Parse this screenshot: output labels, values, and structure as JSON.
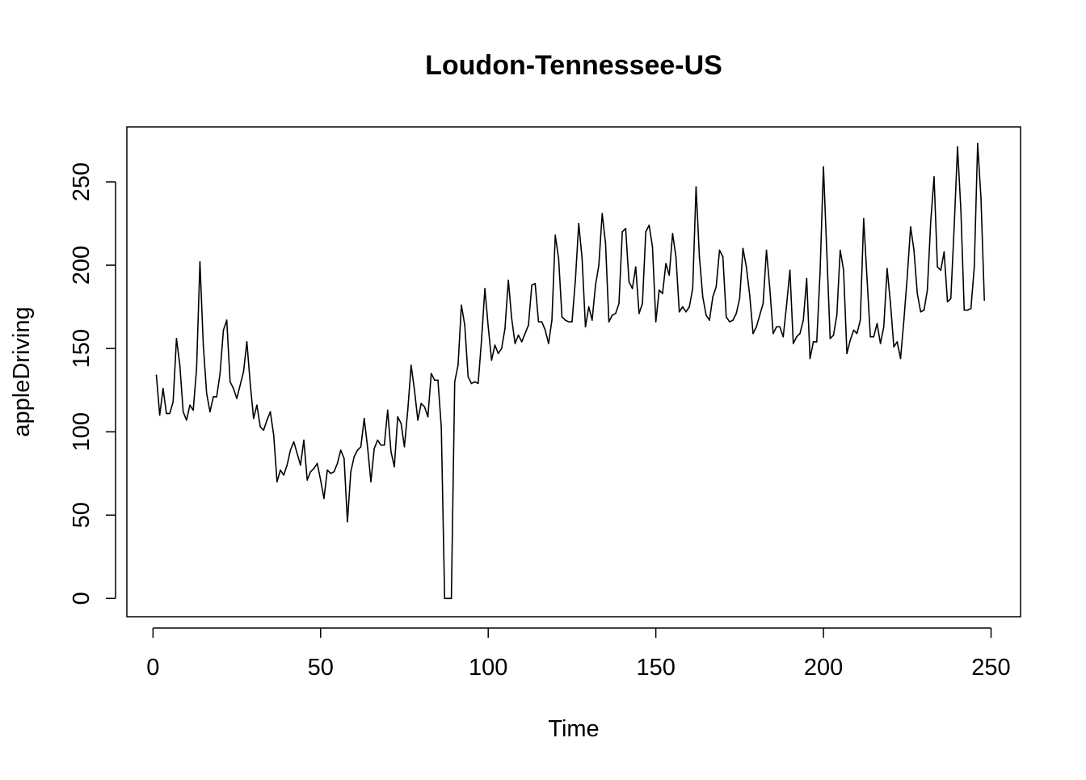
{
  "chart_data": {
    "type": "line",
    "title": "Loudon-Tennessee-US",
    "xlabel": "Time",
    "ylabel": "appleDriving",
    "xlim": [
      -7.8,
      258.8
    ],
    "ylim": [
      -11,
      283
    ],
    "x_ticks": [
      0,
      50,
      100,
      150,
      200,
      250
    ],
    "y_ticks": [
      0,
      50,
      100,
      150,
      200,
      250
    ],
    "x_tick_labels": [
      "0",
      "50",
      "100",
      "150",
      "200",
      "250"
    ],
    "y_tick_labels": [
      "0",
      "50",
      "100",
      "150",
      "200",
      "250"
    ],
    "grid": false,
    "legend": "none",
    "line_color": "#000000",
    "series": [
      {
        "x_start": 1,
        "x_step": 1,
        "values": [
          134,
          110,
          126,
          111,
          111,
          118,
          156,
          140,
          112,
          107,
          116,
          113,
          138,
          202,
          152,
          123,
          112,
          121,
          121,
          135,
          161,
          167,
          130,
          126,
          120,
          128,
          136,
          154,
          129,
          108,
          116,
          103,
          101,
          107,
          112,
          98,
          70,
          77,
          74,
          80,
          89,
          94,
          87,
          80,
          95,
          71,
          76,
          78,
          81,
          71,
          60,
          77,
          75,
          76,
          81,
          89,
          84,
          46,
          76,
          85,
          89,
          91,
          108,
          91,
          70,
          90,
          95,
          92,
          92,
          113,
          88,
          79,
          109,
          105,
          91,
          113,
          140,
          125,
          107,
          117,
          115,
          109,
          135,
          131,
          131,
          103,
          0,
          0,
          0,
          130,
          140,
          176,
          164,
          133,
          129,
          130,
          129,
          155,
          186,
          163,
          143,
          152,
          147,
          150,
          162,
          191,
          168,
          153,
          158,
          154,
          159,
          164,
          188,
          189,
          166,
          166,
          161,
          153,
          167,
          218,
          204,
          169,
          167,
          166,
          166,
          191,
          225,
          204,
          163,
          175,
          167,
          188,
          200,
          231,
          213,
          166,
          170,
          171,
          177,
          220,
          222,
          190,
          186,
          199,
          171,
          177,
          220,
          224,
          211,
          166,
          185,
          183,
          201,
          194,
          219,
          205,
          172,
          175,
          172,
          175,
          186,
          247,
          205,
          181,
          170,
          167,
          181,
          187,
          209,
          205,
          169,
          166,
          167,
          171,
          180,
          210,
          199,
          182,
          159,
          163,
          170,
          177,
          209,
          186,
          159,
          163,
          163,
          157,
          176,
          197,
          153,
          157,
          159,
          167,
          192,
          144,
          154,
          154,
          196,
          259,
          208,
          156,
          158,
          170,
          209,
          197,
          147,
          155,
          161,
          159,
          167,
          228,
          192,
          157,
          157,
          165,
          153,
          163,
          198,
          177,
          151,
          154,
          144,
          167,
          193,
          223,
          209,
          183,
          172,
          173,
          185,
          226,
          253,
          199,
          197,
          208,
          178,
          180,
          223,
          271,
          233,
          173,
          173,
          174,
          199,
          273,
          240,
          179
        ]
      }
    ]
  }
}
